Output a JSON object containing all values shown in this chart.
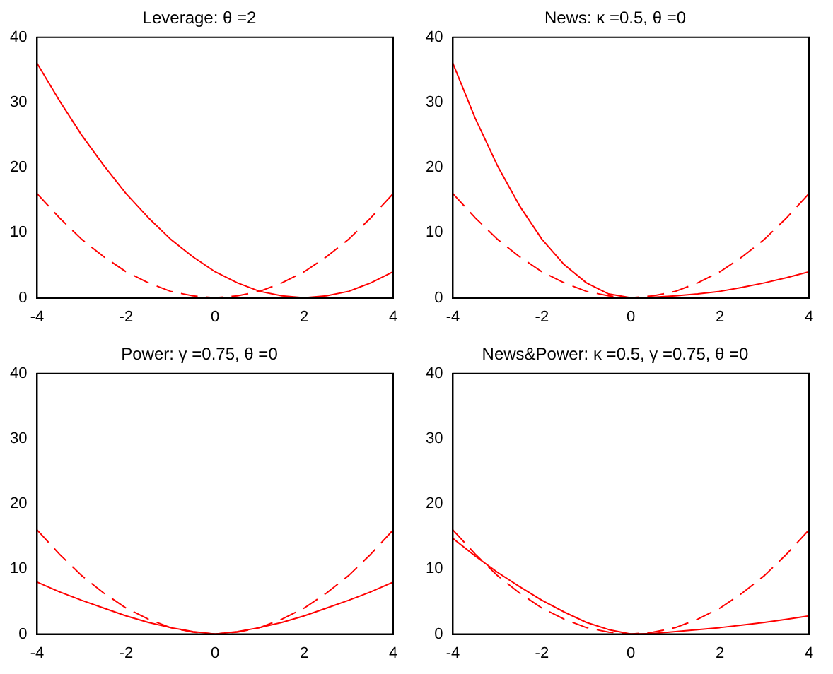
{
  "chart_data": [
    {
      "type": "line",
      "title": "Leverage: θ =2",
      "x": [
        -4,
        -3.5,
        -3,
        -2.5,
        -2,
        -1.5,
        -1,
        -0.5,
        0,
        0.5,
        1,
        1.5,
        2,
        2.5,
        3,
        3.5,
        4
      ],
      "xlim": [
        -4,
        4
      ],
      "xticks": [
        -4,
        -2,
        0,
        2,
        4
      ],
      "ylim": [
        0,
        40
      ],
      "yticks": [
        0,
        10,
        20,
        30,
        40
      ],
      "grid": false,
      "series": [
        {
          "color": "#ff0000",
          "line_style": "solid",
          "values": [
            36,
            30.3,
            25,
            20.3,
            16,
            12.3,
            9,
            6.3,
            4,
            2.3,
            1,
            0.3,
            0,
            0.3,
            1,
            2.3,
            4
          ]
        },
        {
          "color": "#ff0000",
          "line_style": "dashed",
          "values": [
            16,
            12.3,
            9,
            6.3,
            4,
            2.3,
            1,
            0.3,
            0,
            0.3,
            1,
            2.3,
            4,
            6.3,
            9,
            12.3,
            16
          ]
        }
      ]
    },
    {
      "type": "line",
      "title": "News: κ =0.5, θ =0",
      "x": [
        -4,
        -3.5,
        -3,
        -2.5,
        -2,
        -1.5,
        -1,
        -0.5,
        0,
        0.5,
        1,
        1.5,
        2,
        2.5,
        3,
        3.5,
        4
      ],
      "xlim": [
        -4,
        4
      ],
      "xticks": [
        -4,
        -2,
        0,
        2,
        4
      ],
      "ylim": [
        0,
        40
      ],
      "yticks": [
        0,
        10,
        20,
        30,
        40
      ],
      "grid": false,
      "series": [
        {
          "color": "#ff0000",
          "line_style": "solid",
          "values": [
            36,
            27.6,
            20.3,
            14.1,
            9,
            5.1,
            2.3,
            0.6,
            0,
            0.1,
            0.3,
            0.6,
            1,
            1.6,
            2.3,
            3.1,
            4
          ]
        },
        {
          "color": "#ff0000",
          "line_style": "dashed",
          "values": [
            16,
            12.3,
            9,
            6.3,
            4,
            2.3,
            1,
            0.3,
            0,
            0.3,
            1,
            2.3,
            4,
            6.3,
            9,
            12.3,
            16
          ]
        }
      ]
    },
    {
      "type": "line",
      "title": "Power: γ =0.75, θ =0",
      "x": [
        -4,
        -3.5,
        -3,
        -2.5,
        -2,
        -1.5,
        -1,
        -0.5,
        0,
        0.5,
        1,
        1.5,
        2,
        2.5,
        3,
        3.5,
        4
      ],
      "xlim": [
        -4,
        4
      ],
      "xticks": [
        -4,
        -2,
        0,
        2,
        4
      ],
      "ylim": [
        0,
        40
      ],
      "yticks": [
        0,
        10,
        20,
        30,
        40
      ],
      "grid": false,
      "series": [
        {
          "color": "#ff0000",
          "line_style": "solid",
          "values": [
            8,
            6.5,
            5.2,
            4,
            2.8,
            1.8,
            1,
            0.4,
            0,
            0.4,
            1,
            1.8,
            2.8,
            4,
            5.2,
            6.5,
            8
          ]
        },
        {
          "color": "#ff0000",
          "line_style": "dashed",
          "values": [
            16,
            12.3,
            9,
            6.3,
            4,
            2.3,
            1,
            0.3,
            0,
            0.3,
            1,
            2.3,
            4,
            6.3,
            9,
            12.3,
            16
          ]
        }
      ]
    },
    {
      "type": "line",
      "title": "News&Power: κ =0.5, γ =0.75, θ =0",
      "x": [
        -4,
        -3.5,
        -3,
        -2.5,
        -2,
        -1.5,
        -1,
        -0.5,
        0,
        0.5,
        1,
        1.5,
        2,
        2.5,
        3,
        3.5,
        4
      ],
      "xlim": [
        -4,
        4
      ],
      "xticks": [
        -4,
        -2,
        0,
        2,
        4
      ],
      "ylim": [
        0,
        40
      ],
      "yticks": [
        0,
        10,
        20,
        30,
        40
      ],
      "grid": false,
      "series": [
        {
          "color": "#ff0000",
          "line_style": "solid",
          "values": [
            14.7,
            12,
            9.5,
            7.3,
            5.2,
            3.4,
            1.8,
            0.7,
            0,
            0.1,
            0.4,
            0.7,
            1,
            1.4,
            1.8,
            2.3,
            2.8
          ]
        },
        {
          "color": "#ff0000",
          "line_style": "dashed",
          "values": [
            16,
            12.3,
            9,
            6.3,
            4,
            2.3,
            1,
            0.3,
            0,
            0.3,
            1,
            2.3,
            4,
            6.3,
            9,
            12.3,
            16
          ]
        }
      ]
    }
  ]
}
